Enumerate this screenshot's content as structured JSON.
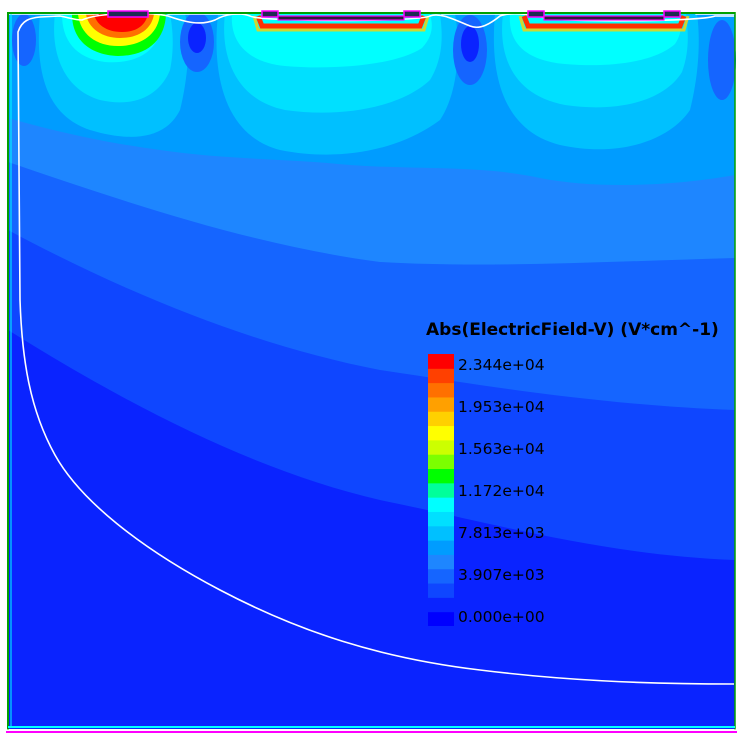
{
  "legend": {
    "title": "Abs(ElectricField-V) (V*cm^-1)",
    "ticks": [
      "2.344e+04",
      "1.953e+04",
      "1.563e+04",
      "1.172e+04",
      "7.813e+03",
      "3.907e+03",
      "0.000e+00"
    ]
  },
  "colors": {
    "level_colors": [
      "#0000ff",
      "#0a23ff",
      "#0f46ff",
      "#1565ff",
      "#1e86ff",
      "#009cff",
      "#00c0ff",
      "#00e0ff",
      "#00ffff",
      "#00ff9a",
      "#00ff00",
      "#7cff00",
      "#ccff00",
      "#ffff00",
      "#ffd000",
      "#ffa000",
      "#ff7000",
      "#ff4000",
      "#ff0000"
    ],
    "depletion_edge": "#ffffff",
    "electrode_magenta": "#ff00ff",
    "boundary_green": "#00a000"
  }
}
